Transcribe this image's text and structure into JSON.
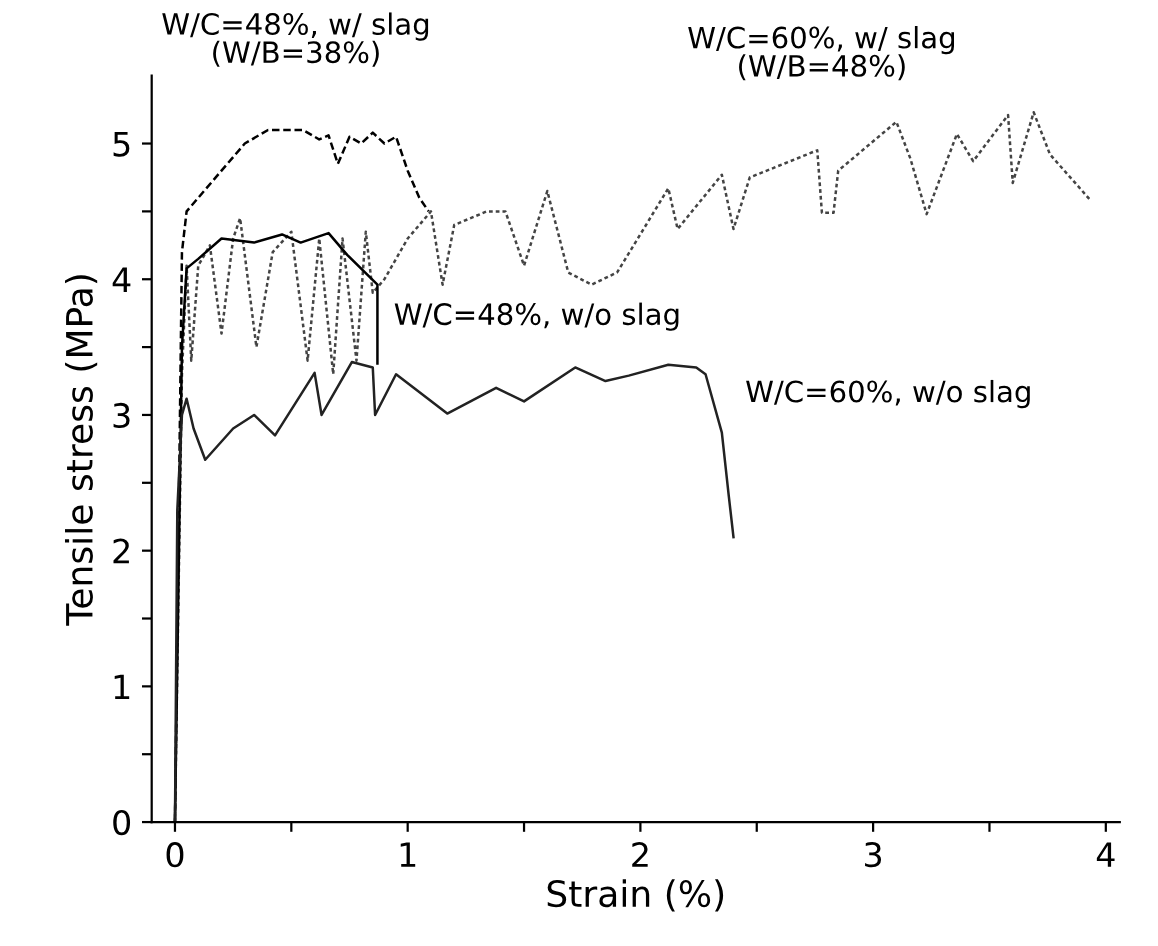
{
  "chart_data": {
    "type": "line",
    "xlabel": "Strain (%)",
    "ylabel": "Tensile stress (MPa)",
    "xlim": [
      -0.1,
      4.06
    ],
    "ylim": [
      0,
      5.5
    ],
    "xticks": [
      0,
      {
        "value": 0.5,
        "label": null
      },
      1,
      {
        "value": 1.5,
        "label": null
      },
      2,
      {
        "value": 2.5,
        "label": null
      },
      3,
      {
        "value": 3.5,
        "label": null
      },
      4
    ],
    "yticks": [
      0,
      {
        "value": 0.5,
        "label": null
      },
      1,
      {
        "value": 1.5,
        "label": null
      },
      2,
      {
        "value": 2.5,
        "label": null
      },
      3,
      {
        "value": 3.5,
        "label": null
      },
      4,
      {
        "value": 4.5,
        "label": null
      },
      5
    ],
    "grid": false,
    "legend": false,
    "marker": "none",
    "series": [
      {
        "name": "W/C=48%, w/ slag\n(W/B=38%)",
        "color": "#000000",
        "line_style": "dashed",
        "x": [
          0,
          0.03,
          0.05,
          0.1,
          0.2,
          0.3,
          0.4,
          0.55,
          0.62,
          0.66,
          0.7,
          0.75,
          0.8,
          0.85,
          0.9,
          0.95,
          1.0,
          1.05,
          1.09
        ],
        "values": [
          0,
          4.2,
          4.5,
          4.6,
          4.8,
          5.0,
          5.1,
          5.1,
          5.03,
          5.06,
          4.85,
          5.05,
          5.0,
          5.08,
          5.0,
          5.05,
          4.8,
          4.6,
          4.5
        ]
      },
      {
        "name": "W/C=60%, w/ slag\n(W/B=48%)",
        "color": "#444444",
        "line_style": "dotted",
        "x": [
          0,
          0.03,
          0.05,
          0.07,
          0.1,
          0.15,
          0.2,
          0.25,
          0.28,
          0.35,
          0.42,
          0.5,
          0.57,
          0.62,
          0.68,
          0.72,
          0.78,
          0.82,
          0.85,
          0.9,
          1.0,
          1.1,
          1.15,
          1.2,
          1.34,
          1.42,
          1.5,
          1.6,
          1.69,
          1.79,
          1.9,
          2.12,
          2.16,
          2.35,
          2.4,
          2.47,
          2.76,
          2.78,
          2.83,
          2.85,
          3.1,
          3.16,
          3.23,
          3.36,
          3.43,
          3.58,
          3.6,
          3.69,
          3.76,
          3.93
        ],
        "values": [
          0,
          3.3,
          4.1,
          3.4,
          4.1,
          4.25,
          3.6,
          4.3,
          4.45,
          3.5,
          4.2,
          4.35,
          3.4,
          4.3,
          3.3,
          4.3,
          3.4,
          4.35,
          3.9,
          4.0,
          4.3,
          4.5,
          3.96,
          4.4,
          4.5,
          4.5,
          4.1,
          4.65,
          4.05,
          3.96,
          4.05,
          4.67,
          4.37,
          4.77,
          4.37,
          4.75,
          4.95,
          4.49,
          4.49,
          4.8,
          5.16,
          4.89,
          4.48,
          5.07,
          4.87,
          5.21,
          4.71,
          5.23,
          4.92,
          4.59
        ]
      },
      {
        "name": "W/C=48%, w/o slag",
        "color": "#000000",
        "line_style": "solid",
        "x": [
          0,
          0.03,
          0.05,
          0.1,
          0.2,
          0.34,
          0.46,
          0.54,
          0.66,
          0.74,
          0.87,
          0.87
        ],
        "values": [
          0,
          3.5,
          4.08,
          4.15,
          4.3,
          4.27,
          4.33,
          4.27,
          4.34,
          4.18,
          3.96,
          3.38
        ]
      },
      {
        "name": "W/C=60%, w/o slag",
        "color": "#222222",
        "line_style": "solid",
        "x": [
          0,
          0.01,
          0.03,
          0.05,
          0.08,
          0.13,
          0.25,
          0.34,
          0.43,
          0.6,
          0.63,
          0.76,
          0.85,
          0.86,
          0.95,
          1.17,
          1.38,
          1.5,
          1.72,
          1.85,
          1.95,
          2.12,
          2.24,
          2.28,
          2.35,
          2.38,
          2.4
        ],
        "values": [
          0,
          2.3,
          3.0,
          3.12,
          2.9,
          2.67,
          2.9,
          3.0,
          2.85,
          3.31,
          3.0,
          3.39,
          3.35,
          3.0,
          3.3,
          3.01,
          3.2,
          3.1,
          3.35,
          3.25,
          3.29,
          3.37,
          3.35,
          3.3,
          2.87,
          2.4,
          2.1
        ]
      }
    ]
  }
}
